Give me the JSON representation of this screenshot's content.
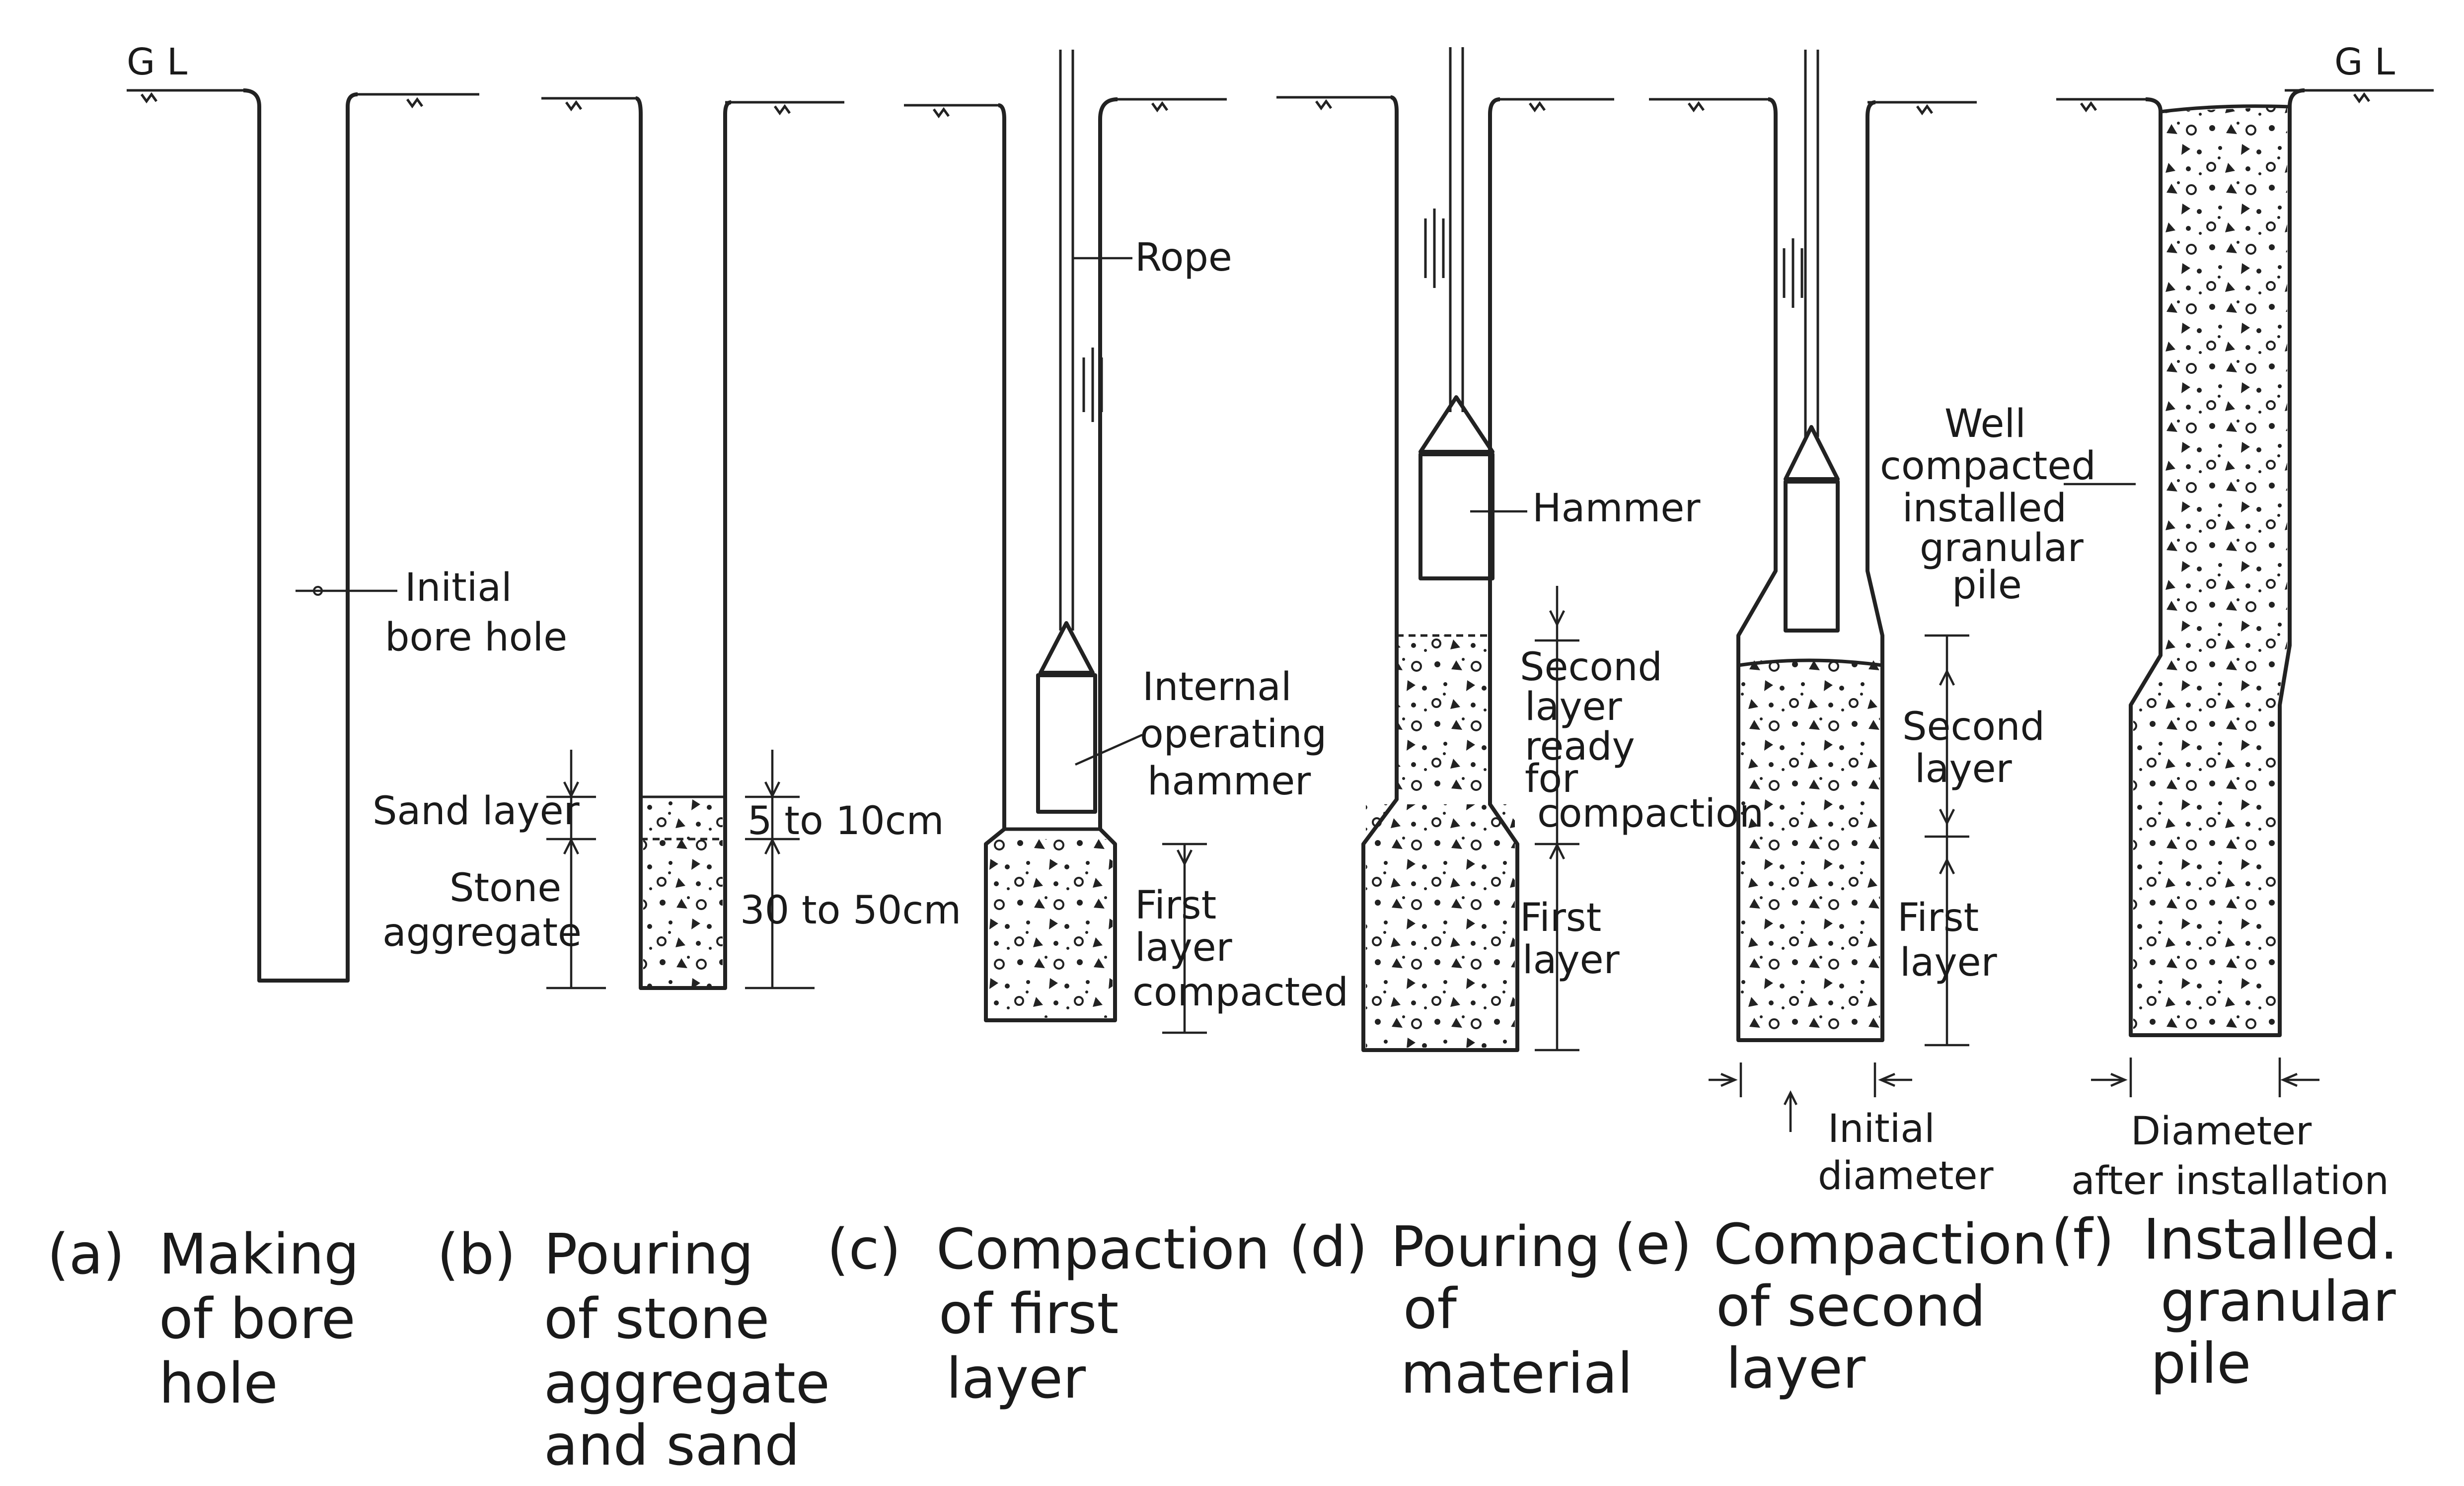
{
  "ground_level": {
    "left": "G L",
    "right": "G L"
  },
  "labels": {
    "initial_bore_hole": [
      "Initial",
      "bore hole"
    ],
    "sand_layer": "Sand layer",
    "stone_aggregate": [
      "Stone",
      "aggregate"
    ],
    "dim_5_10": "5 to 10cm",
    "dim_30_50": "30 to 50cm",
    "rope": "Rope",
    "internal_hammer": [
      "Internal",
      "operating",
      "hammer"
    ],
    "first_layer_compacted": [
      "First",
      "layer",
      "compacted"
    ],
    "hammer": "Hammer",
    "second_layer_ready": [
      "Second",
      "layer",
      "ready",
      "for",
      "compaction"
    ],
    "first_layer_d": [
      "First",
      "layer"
    ],
    "well_compacted": [
      "Well",
      "compacted",
      "installed",
      "granular",
      "pile"
    ],
    "second_layer_e": [
      "Second",
      "layer"
    ],
    "first_layer_e": [
      "First",
      "layer"
    ],
    "initial_diameter": [
      "Initial",
      "diameter"
    ],
    "diameter_after": [
      "Diameter",
      "after installation"
    ]
  },
  "captions": [
    {
      "tag": "(a)",
      "lines": [
        "Making",
        "of  bore",
        "hole"
      ]
    },
    {
      "tag": "(b)",
      "lines": [
        "Pouring",
        "of stone",
        "aggregate",
        "and sand"
      ]
    },
    {
      "tag": "(c)",
      "lines": [
        "Compaction",
        "of  first",
        "layer"
      ]
    },
    {
      "tag": "(d)",
      "lines": [
        "Pouring",
        "of",
        "material"
      ]
    },
    {
      "tag": "(e)",
      "lines": [
        "Compaction",
        "of second",
        "layer"
      ]
    },
    {
      "tag": "(f)",
      "lines": [
        "Installed.",
        "granular",
        "pile"
      ]
    }
  ]
}
